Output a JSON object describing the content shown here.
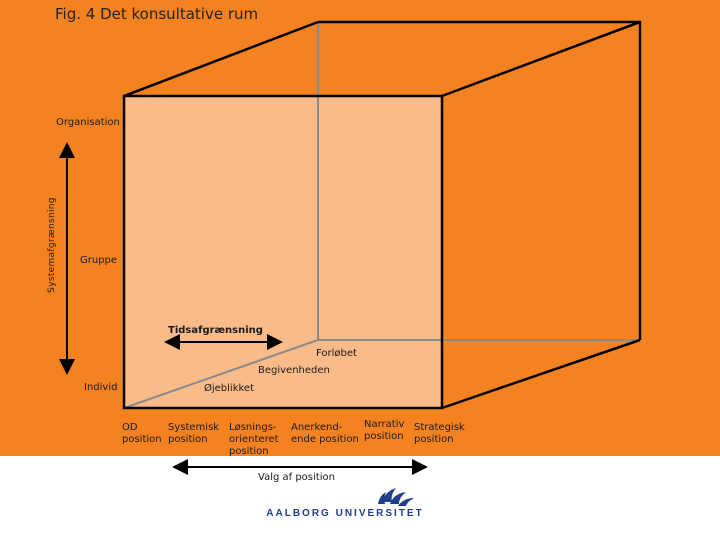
{
  "title": "Fig. 4 Det konsultative rum",
  "y_axis_label": "Systemafgrænsning",
  "levels": {
    "organisation": "Organisation",
    "gruppe": "Gruppe",
    "individ": "Individ"
  },
  "time": {
    "label": "Tidsafgrænsning",
    "forloebet": "Forløbet",
    "begivenheden": "Begivenheden",
    "oejeblikket": "Øjeblikket"
  },
  "positions": [
    [
      "OD",
      "position"
    ],
    [
      "Systemisk",
      "position"
    ],
    [
      "Løsnings-",
      "orienteret",
      "position"
    ],
    [
      "Anerkend-",
      "ende position"
    ],
    [
      "Narrativ",
      "position"
    ],
    [
      "Strategisk",
      "position"
    ]
  ],
  "x_axis_label": "Valg af position",
  "logo_text": "AALBORG UNIVERSITET",
  "colors": {
    "background_orange": "#f58220",
    "front_face": "#f9bb8a",
    "logo_blue": "#1f3f88"
  }
}
